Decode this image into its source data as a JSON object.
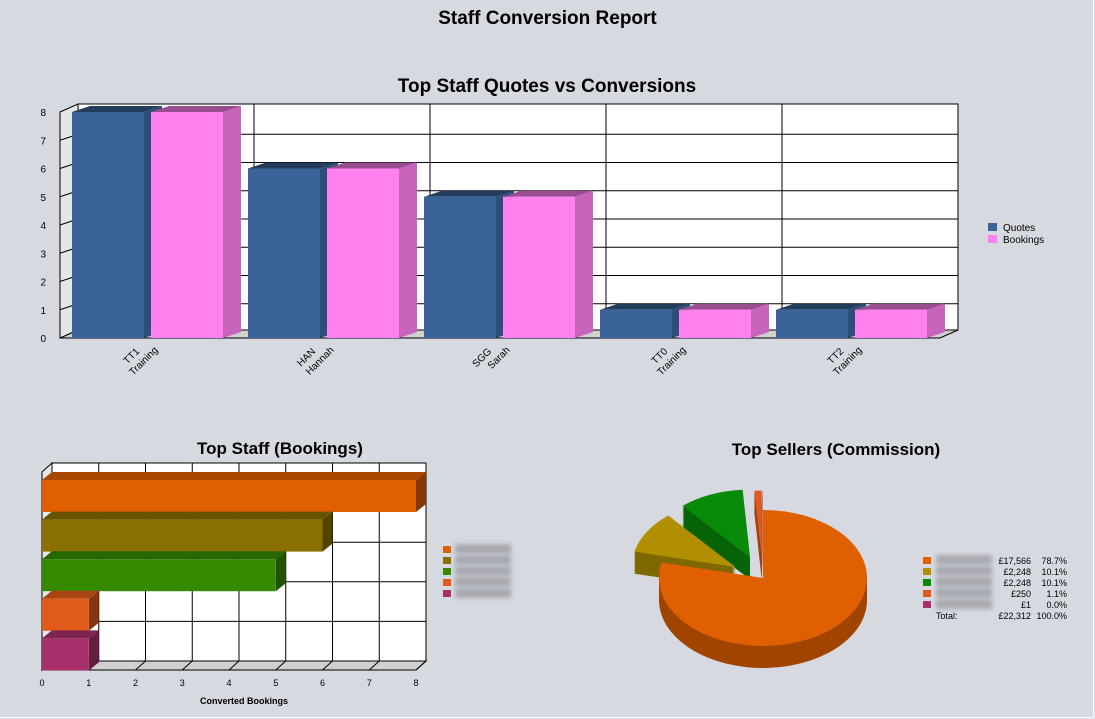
{
  "report_title": "Staff Conversion Report",
  "colors": {
    "quotes": "#3a6499",
    "bookings": "#ff80ef",
    "bar_palette": [
      "#e05f00",
      "#8a7000",
      "#358a00",
      "#e05a1a",
      "#a8306a"
    ],
    "pie_palette": [
      "#e05f00",
      "#b09000",
      "#0a8a0a",
      "#e05a1a",
      "#a8306a"
    ]
  },
  "chart_data": [
    {
      "type": "bar",
      "title": "Top Staff Quotes vs Conversions",
      "categories": [
        [
          "TT1",
          "Training"
        ],
        [
          "HAN",
          "Hannah"
        ],
        [
          "SGG",
          "Sarah"
        ],
        [
          "TT0",
          "Training"
        ],
        [
          "TT2",
          "Training"
        ]
      ],
      "series": [
        {
          "name": "Quotes",
          "values": [
            8,
            6,
            5,
            1,
            1
          ]
        },
        {
          "name": "Bookings",
          "values": [
            8,
            6,
            5,
            1,
            1
          ]
        }
      ],
      "ylim": [
        0,
        8
      ],
      "yticks": [
        0,
        1,
        2,
        3,
        4,
        5,
        6,
        7,
        8
      ],
      "grid": true,
      "legend": "right"
    },
    {
      "type": "bar",
      "orientation": "horizontal",
      "title": "Top Staff (Bookings)",
      "xlabel": "Converted Bookings",
      "values": [
        8,
        6,
        5,
        1,
        1
      ],
      "xlim": [
        0,
        8
      ],
      "xticks": [
        0,
        1,
        2,
        3,
        4,
        5,
        6,
        7,
        8
      ],
      "grid": true,
      "legend": "right"
    },
    {
      "type": "pie",
      "title": "Top Sellers (Commission)",
      "slices": [
        {
          "amount": "£17,566",
          "percent": "78.7%",
          "value": 78.7
        },
        {
          "amount": "£2,248",
          "percent": "10.1%",
          "value": 10.1
        },
        {
          "amount": "£2,248",
          "percent": "10.1%",
          "value": 10.1
        },
        {
          "amount": "£250",
          "percent": "1.1%",
          "value": 1.1
        },
        {
          "amount": "£1",
          "percent": "0.0%",
          "value": 0.05
        }
      ],
      "total_label": "Total:",
      "total_amount": "£22,312",
      "total_percent": "100.0%",
      "legend": "right"
    }
  ]
}
